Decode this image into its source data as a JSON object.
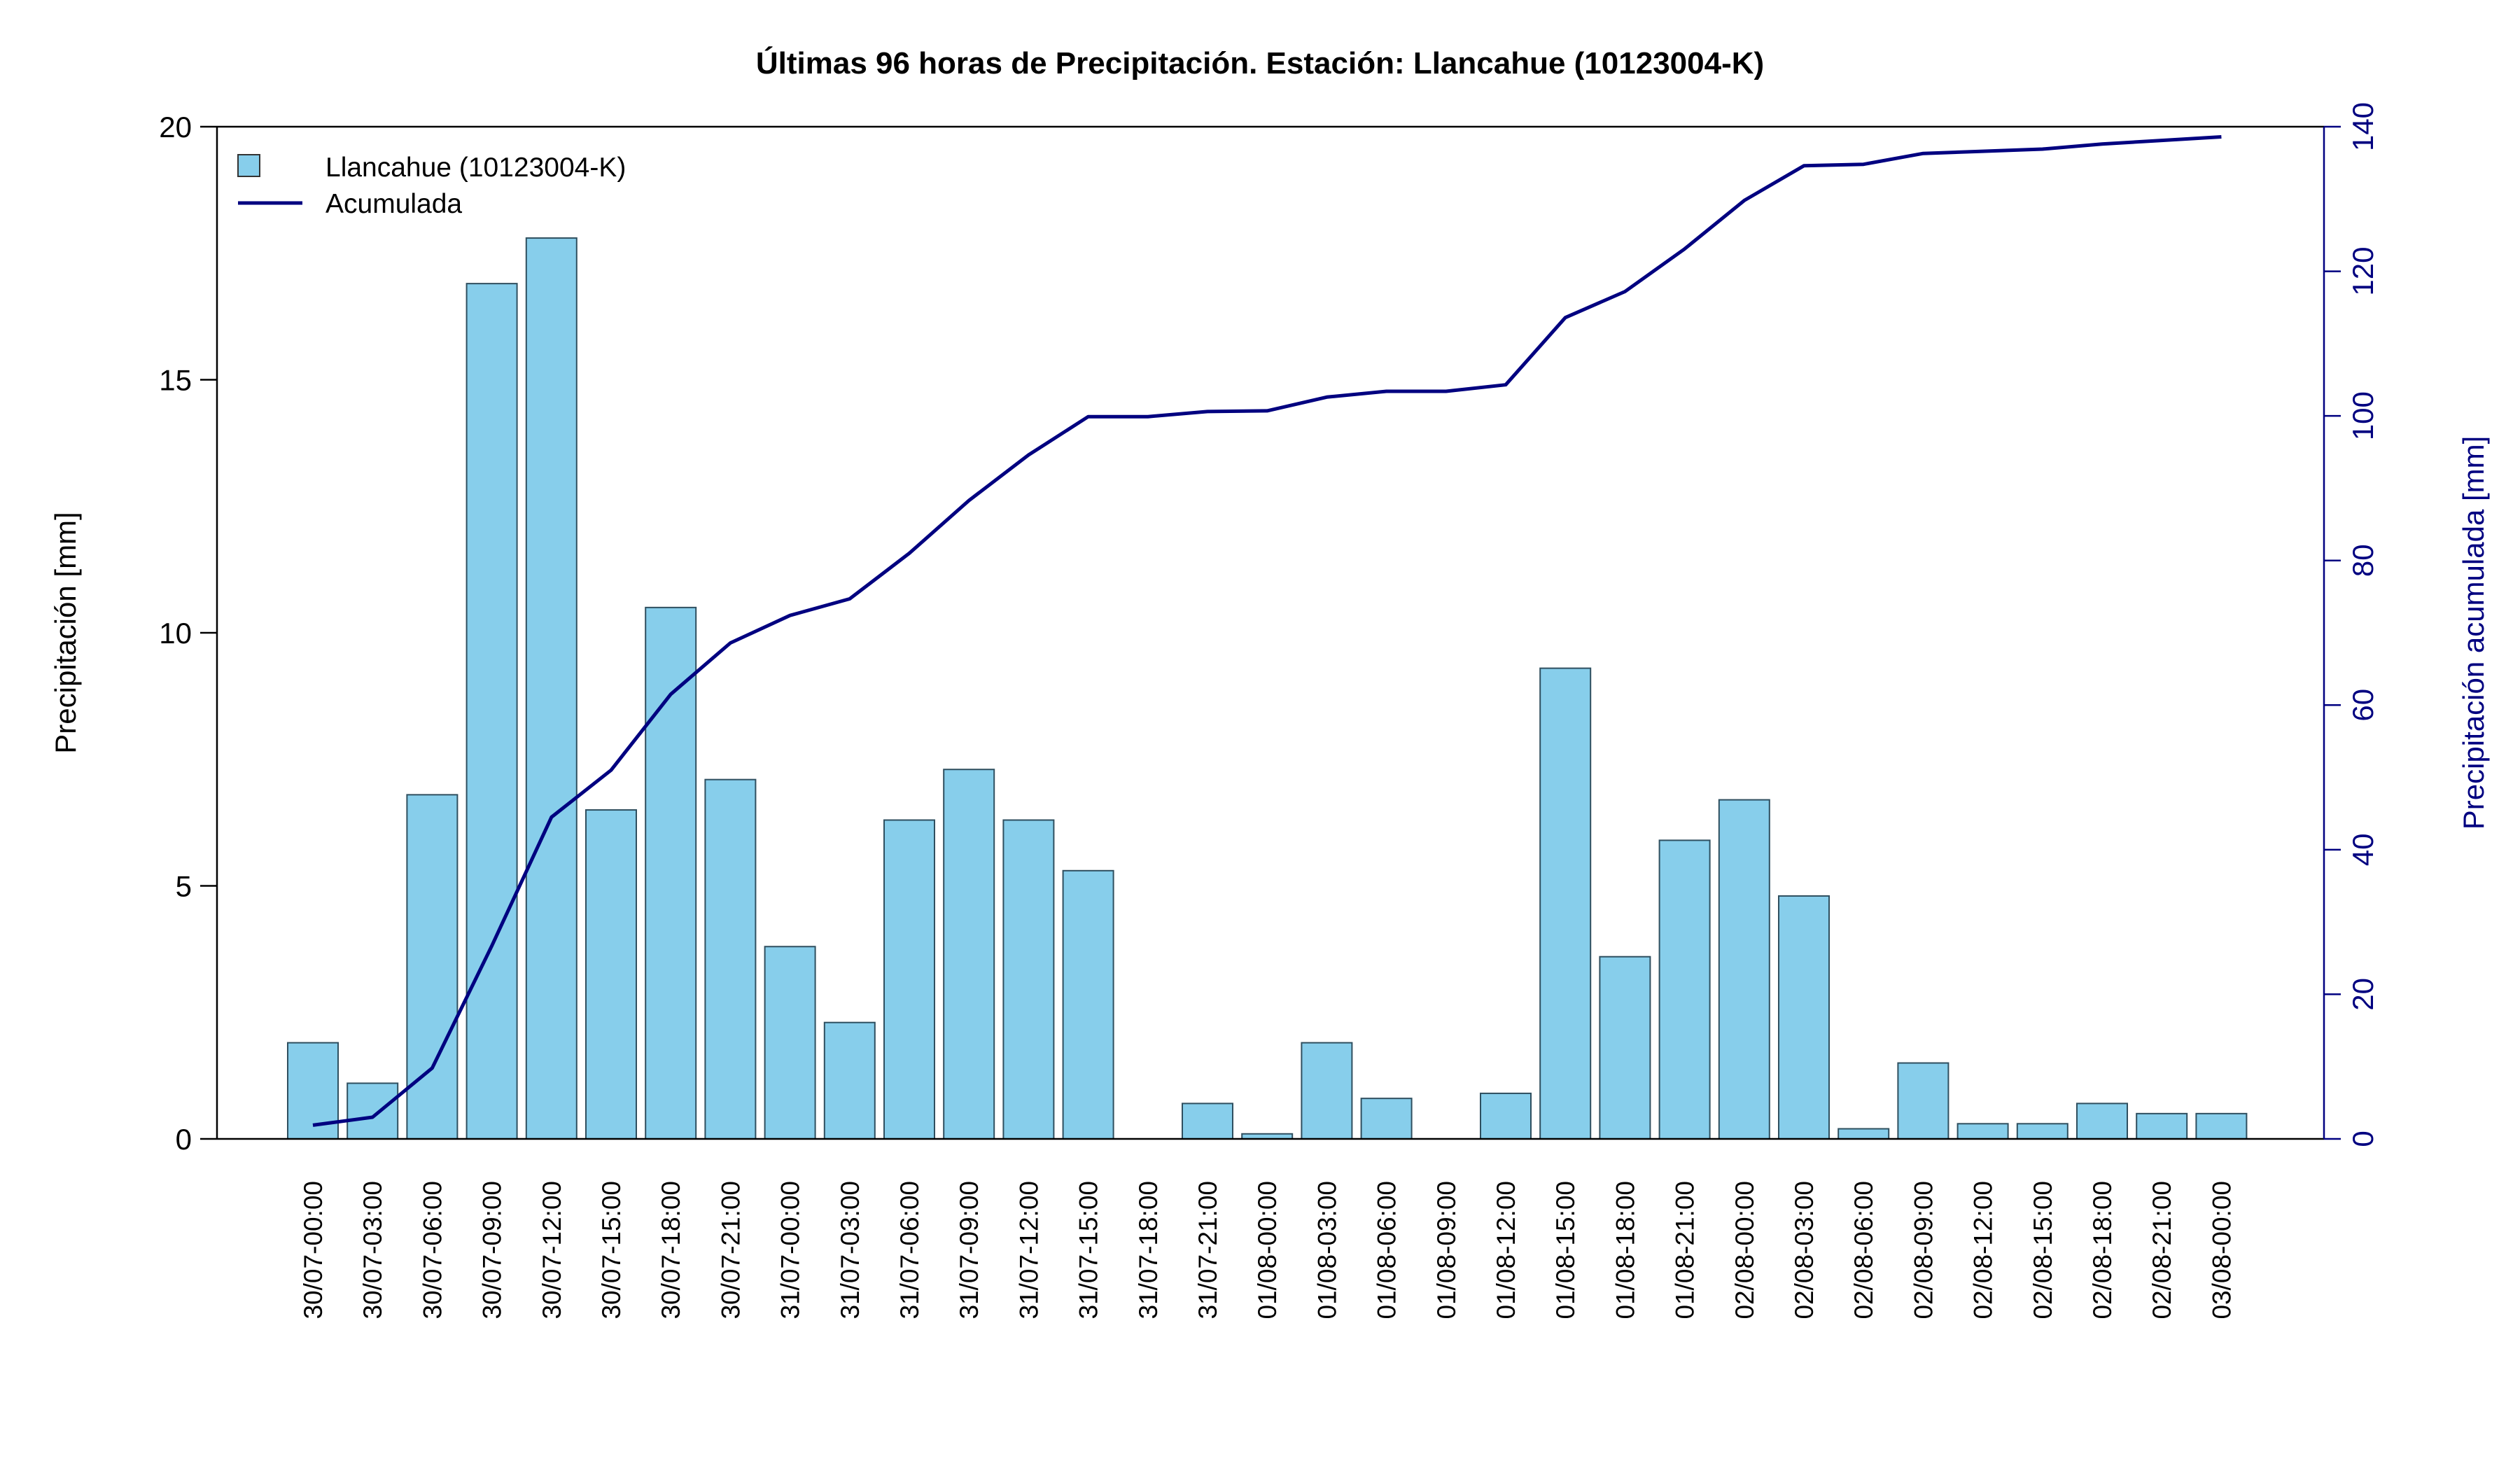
{
  "chart_data": {
    "type": "bar",
    "title": "Últimas 96 horas de Precipitación. Estación: Llancahue (10123004-K)",
    "ylabel": "Precipitación [mm]",
    "y2label": "Precipitación acumulada [mm]",
    "ylim": [
      0,
      20
    ],
    "y2lim": [
      0,
      140
    ],
    "yticks": [
      "0",
      "5",
      "10",
      "15",
      "20"
    ],
    "y2ticks": [
      "0",
      "20",
      "40",
      "60",
      "80",
      "100",
      "120",
      "140"
    ],
    "categories": [
      "30/07-00:00",
      "30/07-03:00",
      "30/07-06:00",
      "30/07-09:00",
      "30/07-12:00",
      "30/07-15:00",
      "30/07-18:00",
      "30/07-21:00",
      "31/07-00:00",
      "31/07-03:00",
      "31/07-06:00",
      "31/07-09:00",
      "31/07-12:00",
      "31/07-15:00",
      "31/07-18:00",
      "31/07-21:00",
      "01/08-00:00",
      "01/08-03:00",
      "01/08-06:00",
      "01/08-09:00",
      "01/08-12:00",
      "01/08-15:00",
      "01/08-18:00",
      "01/08-21:00",
      "02/08-00:00",
      "02/08-03:00",
      "02/08-06:00",
      "02/08-09:00",
      "02/08-12:00",
      "02/08-15:00",
      "02/08-18:00",
      "02/08-21:00",
      "03/08-00:00"
    ],
    "series": [
      {
        "name": "Llancahue (10123004-K)",
        "type": "bar",
        "color": "#87CEEB",
        "values": [
          1.9,
          1.1,
          6.8,
          16.9,
          17.8,
          6.5,
          10.5,
          7.1,
          3.8,
          2.3,
          6.3,
          7.3,
          6.3,
          5.3,
          0.0,
          0.7,
          0.1,
          1.9,
          0.8,
          0.0,
          0.9,
          9.3,
          3.6,
          5.9,
          6.7,
          4.8,
          0.2,
          1.5,
          0.3,
          0.3,
          0.7,
          0.5,
          0.5
        ]
      },
      {
        "name": "Acumulada",
        "type": "line",
        "axis": "right",
        "color": "#000080",
        "values": [
          1.9,
          3.0,
          9.8,
          26.7,
          44.5,
          51.0,
          61.5,
          68.6,
          72.4,
          74.7,
          81.0,
          88.3,
          94.6,
          99.9,
          99.9,
          100.6,
          100.7,
          102.6,
          103.4,
          103.4,
          104.3,
          113.6,
          117.2,
          123.1,
          129.8,
          134.6,
          134.8,
          136.3,
          136.6,
          136.9,
          137.6,
          138.1,
          138.6
        ]
      }
    ],
    "legend": {
      "position": "top-left",
      "entries": [
        "Llancahue (10123004-K)",
        "Acumulada"
      ]
    },
    "grid": false
  }
}
